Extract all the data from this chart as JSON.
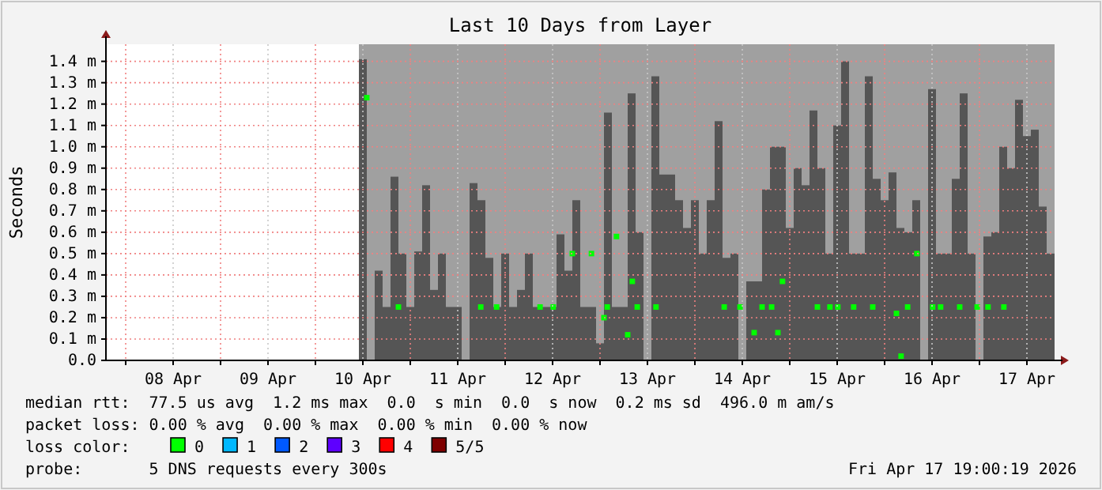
{
  "chart_data": {
    "type": "bar",
    "title": "Last 10 Days from Layer",
    "ylabel": "Seconds",
    "legend_title": "loss color:",
    "legend": "bottom",
    "grid": true,
    "marker": "square",
    "xlim": [
      "2026-04-07T19:00",
      "2026-04-17T19:00"
    ],
    "ylim": [
      0,
      1.48
    ],
    "yticks": [
      {
        "value": 0,
        "label": "0.0"
      },
      {
        "value": 0.1,
        "label": "0.1 m"
      },
      {
        "value": 0.2,
        "label": "0.2 m"
      },
      {
        "value": 0.3,
        "label": "0.3 m"
      },
      {
        "value": 0.4,
        "label": "0.4 m"
      },
      {
        "value": 0.5,
        "label": "0.5 m"
      },
      {
        "value": 0.6,
        "label": "0.6 m"
      },
      {
        "value": 0.7,
        "label": "0.7 m"
      },
      {
        "value": 0.8,
        "label": "0.8 m"
      },
      {
        "value": 0.9,
        "label": "0.9 m"
      },
      {
        "value": 1.0,
        "label": "1.0 m"
      },
      {
        "value": 1.1,
        "label": "1.1 m"
      },
      {
        "value": 1.2,
        "label": "1.2 m"
      },
      {
        "value": 1.3,
        "label": "1.3 m"
      },
      {
        "value": 1.4,
        "label": "1.4 m"
      }
    ],
    "xticks": [
      {
        "value": "2026-04-08T00:00",
        "label": null
      },
      {
        "value": "2026-04-08T12:00",
        "label": "08 Apr"
      },
      {
        "value": "2026-04-09T00:00",
        "label": null
      },
      {
        "value": "2026-04-09T12:00",
        "label": "09 Apr"
      },
      {
        "value": "2026-04-10T00:00",
        "label": null
      },
      {
        "value": "2026-04-10T12:00",
        "label": "10 Apr"
      },
      {
        "value": "2026-04-11T00:00",
        "label": null
      },
      {
        "value": "2026-04-11T12:00",
        "label": "11 Apr"
      },
      {
        "value": "2026-04-12T00:00",
        "label": null
      },
      {
        "value": "2026-04-12T12:00",
        "label": "12 Apr"
      },
      {
        "value": "2026-04-13T00:00",
        "label": null
      },
      {
        "value": "2026-04-13T12:00",
        "label": "13 Apr"
      },
      {
        "value": "2026-04-14T00:00",
        "label": null
      },
      {
        "value": "2026-04-14T12:00",
        "label": "14 Apr"
      },
      {
        "value": "2026-04-15T00:00",
        "label": null
      },
      {
        "value": "2026-04-15T12:00",
        "label": "15 Apr"
      },
      {
        "value": "2026-04-16T00:00",
        "label": null
      },
      {
        "value": "2026-04-16T12:00",
        "label": "16 Apr"
      },
      {
        "value": "2026-04-17T00:00",
        "label": null
      },
      {
        "value": "2026-04-17T12:00",
        "label": "17 Apr"
      }
    ],
    "bands": [
      {
        "axis": "x",
        "from": "2026-04-10T11:00",
        "to": "2026-04-17T19:00",
        "color": "#a0a0a0"
      }
    ],
    "series": [
      {
        "color": "#555555",
        "x": [
          "2026-04-10T11:00",
          "2026-04-10T13:00",
          "2026-04-10T15:00",
          "2026-04-10T17:00",
          "2026-04-10T19:00",
          "2026-04-10T21:00",
          "2026-04-10T23:00",
          "2026-04-11T01:00",
          "2026-04-11T03:00",
          "2026-04-11T05:00",
          "2026-04-11T07:00",
          "2026-04-11T09:00",
          "2026-04-11T11:00",
          "2026-04-11T13:00",
          "2026-04-11T15:00",
          "2026-04-11T17:00",
          "2026-04-11T19:00",
          "2026-04-11T21:00",
          "2026-04-11T23:00",
          "2026-04-12T01:00",
          "2026-04-12T03:00",
          "2026-04-12T05:00",
          "2026-04-12T07:00",
          "2026-04-12T09:00",
          "2026-04-12T11:00",
          "2026-04-12T13:00",
          "2026-04-12T15:00",
          "2026-04-12T17:00",
          "2026-04-12T19:00",
          "2026-04-12T21:00",
          "2026-04-12T23:00",
          "2026-04-13T01:00",
          "2026-04-13T03:00",
          "2026-04-13T05:00",
          "2026-04-13T07:00",
          "2026-04-13T09:00",
          "2026-04-13T11:00",
          "2026-04-13T13:00",
          "2026-04-13T15:00",
          "2026-04-13T17:00",
          "2026-04-13T19:00",
          "2026-04-13T21:00",
          "2026-04-13T23:00",
          "2026-04-14T01:00",
          "2026-04-14T03:00",
          "2026-04-14T05:00",
          "2026-04-14T07:00",
          "2026-04-14T09:00",
          "2026-04-14T11:00",
          "2026-04-14T13:00",
          "2026-04-14T15:00",
          "2026-04-14T17:00",
          "2026-04-14T19:00",
          "2026-04-14T21:00",
          "2026-04-14T23:00",
          "2026-04-15T01:00",
          "2026-04-15T03:00",
          "2026-04-15T05:00",
          "2026-04-15T07:00",
          "2026-04-15T09:00",
          "2026-04-15T11:00",
          "2026-04-15T13:00",
          "2026-04-15T15:00",
          "2026-04-15T17:00",
          "2026-04-15T19:00",
          "2026-04-15T21:00",
          "2026-04-15T23:00",
          "2026-04-16T01:00",
          "2026-04-16T03:00",
          "2026-04-16T05:00",
          "2026-04-16T07:00",
          "2026-04-16T09:00",
          "2026-04-16T11:00",
          "2026-04-16T13:00",
          "2026-04-16T15:00",
          "2026-04-16T17:00",
          "2026-04-16T19:00",
          "2026-04-16T21:00",
          "2026-04-16T23:00",
          "2026-04-17T01:00",
          "2026-04-17T03:00",
          "2026-04-17T05:00",
          "2026-04-17T07:00",
          "2026-04-17T09:00",
          "2026-04-17T11:00",
          "2026-04-17T13:00",
          "2026-04-17T15:00",
          "2026-04-17T17:00"
        ],
        "values": [
          1.41,
          null,
          0.42,
          0.25,
          0.86,
          0.5,
          0.25,
          0.51,
          0.82,
          0.33,
          0.5,
          0.25,
          0.25,
          0,
          0.83,
          0.75,
          0.48,
          0.25,
          0.5,
          0.25,
          0.33,
          0.5,
          0.25,
          0.25,
          0.25,
          0.59,
          0.42,
          0.75,
          0.25,
          0.25,
          0.08,
          1.16,
          0.25,
          0.25,
          1.25,
          0.6,
          null,
          1.33,
          0.87,
          0.87,
          0.75,
          0.62,
          0.75,
          0.5,
          0.75,
          1.12,
          0.48,
          0.5,
          null,
          0.37,
          0.37,
          0.8,
          1.0,
          1.0,
          0.62,
          0.9,
          0.82,
          1.17,
          0.9,
          0.5,
          1.1,
          1.4,
          0.5,
          0.5,
          1.33,
          0.85,
          0.75,
          0.88,
          0.62,
          0.6,
          0.75,
          null,
          1.27,
          0.5,
          0.5,
          0.85,
          1.25,
          0.5,
          null,
          0.58,
          0.6,
          1.0,
          0.9,
          1.22,
          1.05,
          1.08,
          0.72,
          0.5
        ]
      },
      {
        "type": "scatter",
        "name": "0",
        "color": "#00ff00",
        "x": [
          "2026-04-10T13:00",
          "2026-04-10T21:00",
          "2026-04-11T17:50",
          "2026-04-11T21:50",
          "2026-04-12T08:50",
          "2026-04-12T12:10",
          "2026-04-12T17:00",
          "2026-04-12T21:50",
          "2026-04-13T01:00",
          "2026-04-13T01:50",
          "2026-04-13T04:10",
          "2026-04-13T07:00",
          "2026-04-13T08:10",
          "2026-04-13T09:25",
          "2026-04-13T14:10",
          "2026-04-14T07:25",
          "2026-04-14T11:25",
          "2026-04-14T15:00",
          "2026-04-14T17:00",
          "2026-04-14T19:25",
          "2026-04-14T21:00",
          "2026-04-14T22:10",
          "2026-04-15T07:00",
          "2026-04-15T10:10",
          "2026-04-15T12:10",
          "2026-04-15T16:10",
          "2026-04-15T21:00",
          "2026-04-16T03:00",
          "2026-04-16T04:10",
          "2026-04-16T05:50",
          "2026-04-16T08:10",
          "2026-04-16T12:10",
          "2026-04-16T14:10",
          "2026-04-16T19:00",
          "2026-04-16T23:25",
          "2026-04-17T02:10",
          "2026-04-17T06:10"
        ],
        "values": [
          1.23,
          0.25,
          0.25,
          0.25,
          0.25,
          0.25,
          0.5,
          0.5,
          0.2,
          0.25,
          0.58,
          0.12,
          0.37,
          0.25,
          0.25,
          0.25,
          0.25,
          0.13,
          0.25,
          0.25,
          0.13,
          0.37,
          0.25,
          0.25,
          0.25,
          0.25,
          0.25,
          0.22,
          0.02,
          0.25,
          0.5,
          0.25,
          0.25,
          0.25,
          0.25,
          0.25,
          0.25
        ]
      },
      {
        "type": "scatter",
        "name": "1",
        "color": "#00b8ff"
      },
      {
        "type": "scatter",
        "name": "2",
        "color": "#0059ff"
      },
      {
        "type": "scatter",
        "name": "3",
        "color": "#5e00ff"
      },
      {
        "type": "scatter",
        "name": "4",
        "color": "#ff0000"
      },
      {
        "type": "scatter",
        "name": "5/5",
        "color": "#7e0000"
      }
    ],
    "annotations": [
      "median rtt:  77.5 us avg  1.2 ms max  0.0  s min  0.0  s now  0.2 ms sd  496.0 m am/s",
      "packet loss: 0.00 % avg  0.00 % max  0.00 % min  0.00 % now",
      "probe:       5 DNS requests every 300s",
      "Fri Apr 17 19:00:19 2026"
    ]
  }
}
